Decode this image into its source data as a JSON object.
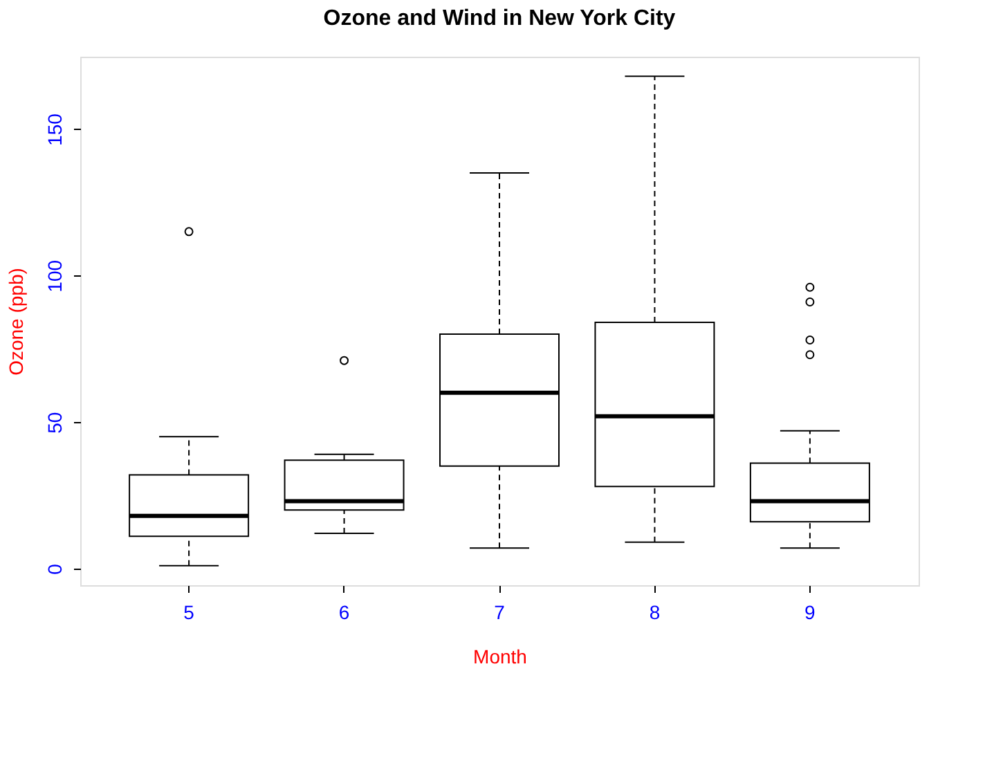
{
  "chart_data": {
    "type": "box",
    "title": "Ozone and Wind in New York City",
    "xlabel": "Month",
    "ylabel": "Ozone (ppb)",
    "categories": [
      "5",
      "6",
      "7",
      "8",
      "9"
    ],
    "boxes": [
      {
        "low": 1,
        "q1": 11,
        "median": 18,
        "q3": 32,
        "high": 45,
        "outliers": [
          115
        ]
      },
      {
        "low": 12,
        "q1": 20,
        "median": 23,
        "q3": 37,
        "high": 39,
        "outliers": [
          71
        ]
      },
      {
        "low": 7,
        "q1": 35,
        "median": 60,
        "q3": 80,
        "high": 135
      },
      {
        "low": 9,
        "q1": 28,
        "median": 52,
        "q3": 84,
        "high": 168
      },
      {
        "low": 7,
        "q1": 16,
        "median": 23,
        "q3": 36,
        "high": 47,
        "outliers": [
          73,
          78,
          91,
          96
        ]
      }
    ],
    "ylim": [
      -5.68,
      174.68
    ],
    "yticks": [
      0,
      50,
      100,
      150
    ]
  }
}
